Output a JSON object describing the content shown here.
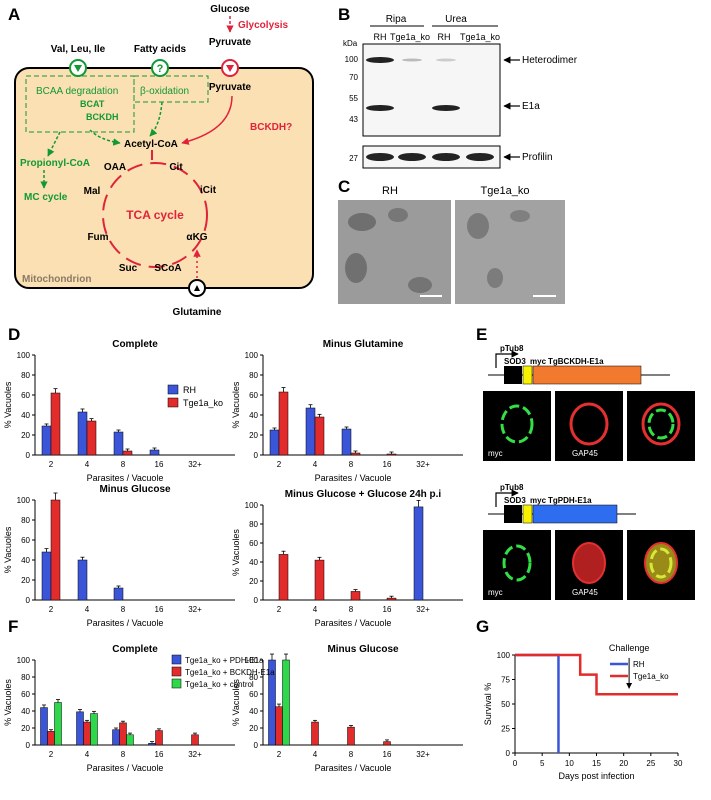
{
  "panel_letters": [
    "A",
    "B",
    "C",
    "D",
    "E",
    "F",
    "G"
  ],
  "panelA": {
    "inputs": [
      "Val, Leu, Ile",
      "Fatty acids",
      "Glucose"
    ],
    "glycolysis": "Glycolysis",
    "pyruvate": "Pyruvate",
    "bcaa_degradation": "BCAA degradation",
    "bcat": "BCAT",
    "bckdh": "BCKDH",
    "beta_ox": "β-oxidation",
    "acetyl_coa": "Acetyl-CoA",
    "bckdh_q": "BCKDH?",
    "propionyl_coa": "Propionyl-CoA",
    "mc_cycle": "MC cycle",
    "tca": "TCA cycle",
    "mets": [
      "OAA",
      "Cit",
      "iCit",
      "αKG",
      "SCoA",
      "Suc",
      "Fum",
      "Mal"
    ],
    "mito": "Mitochondrion",
    "glutamine": "Glutamine",
    "q": "?"
  },
  "panelB": {
    "groups": [
      "Ripa",
      "Urea"
    ],
    "lanes": [
      "RH",
      "Tge1a_ko",
      "RH",
      "Tge1a_ko"
    ],
    "kda": "kDa",
    "mw": [
      "100",
      "70",
      "55",
      "43",
      "27"
    ],
    "bands": [
      "Heterodimer",
      "E1a",
      "Profilin"
    ]
  },
  "panelC": {
    "labels": [
      "RH",
      "Tge1a_ko"
    ]
  },
  "colors": {
    "rh": "#3b55d9",
    "ko": "#e22b2b",
    "pdh": "#3b55d9",
    "bckdh": "#e22b2b",
    "control": "#2fd84a",
    "diagram_red": "#e0233a",
    "diagram_green": "#119933",
    "mito_fill": "#fbe0b3"
  },
  "chart_data": [
    {
      "type": "bar",
      "title": "Complete",
      "xlabel": "Parasites / Vacuole",
      "ylabel": "% Vacuoles",
      "ylim": [
        0,
        100
      ],
      "categories": [
        "2",
        "4",
        "8",
        "16",
        "32+"
      ],
      "series": [
        {
          "name": "RH",
          "values": [
            29,
            43,
            23,
            5,
            0
          ]
        },
        {
          "name": "Tge1a_ko",
          "values": [
            62,
            34,
            4,
            0,
            0
          ]
        }
      ]
    },
    {
      "type": "bar",
      "title": "Minus Glutamine",
      "xlabel": "Parasites / Vacuole",
      "ylabel": "% Vacuoles",
      "ylim": [
        0,
        100
      ],
      "categories": [
        "2",
        "4",
        "8",
        "16",
        "32+"
      ],
      "series": [
        {
          "name": "RH",
          "values": [
            25,
            47,
            26,
            0,
            0
          ]
        },
        {
          "name": "Tge1a_ko",
          "values": [
            63,
            38,
            2,
            1,
            0
          ]
        }
      ]
    },
    {
      "type": "bar",
      "title": "Minus Glucose",
      "xlabel": "Parasites / Vacuole",
      "ylabel": "% Vacuoles",
      "ylim": [
        0,
        100
      ],
      "categories": [
        "2",
        "4",
        "8",
        "16",
        "32+"
      ],
      "series": [
        {
          "name": "RH",
          "values": [
            48,
            40,
            12,
            0,
            0
          ]
        },
        {
          "name": "Tge1a_ko",
          "values": [
            100,
            0,
            0,
            0,
            0
          ]
        }
      ]
    },
    {
      "type": "bar",
      "title": "Minus Glucose + Glucose 24h p.i",
      "xlabel": "Parasites / Vacuole",
      "ylabel": "% Vacuoles",
      "ylim": [
        0,
        100
      ],
      "categories": [
        "2",
        "4",
        "8",
        "16",
        "32+"
      ],
      "series": [
        {
          "name": "RH",
          "values": [
            0,
            0,
            0,
            0,
            98
          ]
        },
        {
          "name": "Tge1a_ko",
          "values": [
            48,
            42,
            9,
            2,
            0
          ]
        }
      ]
    },
    {
      "type": "bar",
      "title": "Complete",
      "xlabel": "Parasites / Vacuole",
      "ylabel": "% Vacuoles",
      "ylim": [
        0,
        100
      ],
      "categories": [
        "2",
        "4",
        "8",
        "16",
        "32+"
      ],
      "series": [
        {
          "name": "Tge1a_ko + PDH-E1a",
          "values": [
            44,
            39,
            18,
            2,
            0
          ]
        },
        {
          "name": "Tge1a_ko + BCKDH-E1a",
          "values": [
            16,
            27,
            26,
            17,
            12
          ]
        },
        {
          "name": "Tge1a_ko + control",
          "values": [
            50,
            37,
            12,
            0,
            0
          ]
        }
      ]
    },
    {
      "type": "bar",
      "title": "Minus Glucose",
      "xlabel": "Parasites / Vacuole",
      "ylabel": "% Vacuoles",
      "ylim": [
        0,
        100
      ],
      "categories": [
        "2",
        "4",
        "8",
        "16",
        "32+"
      ],
      "series": [
        {
          "name": "Tge1a_ko + PDH-E1a",
          "values": [
            100,
            0,
            0,
            0,
            0
          ]
        },
        {
          "name": "Tge1a_ko + BCKDH-E1a",
          "values": [
            45,
            27,
            21,
            4,
            0
          ]
        },
        {
          "name": "Tge1a_ko + control",
          "values": [
            100,
            0,
            0,
            0,
            0
          ]
        }
      ]
    },
    {
      "type": "line",
      "xlabel": "Days post infection",
      "ylabel": "Survival %",
      "ylim": [
        0,
        100
      ],
      "xlim": [
        0,
        30
      ],
      "x_ticks": [
        0,
        5,
        10,
        15,
        20,
        25,
        30
      ],
      "y_ticks": [
        0,
        25,
        50,
        75,
        100
      ],
      "series": [
        {
          "name": "RH",
          "x": [
            0,
            8,
            8
          ],
          "y": [
            100,
            100,
            0
          ]
        },
        {
          "name": "Tge1a_ko",
          "x": [
            0,
            12,
            12,
            15,
            15,
            30
          ],
          "y": [
            100,
            100,
            80,
            80,
            60,
            60
          ]
        }
      ],
      "annotation": "Challenge"
    }
  ],
  "panelE": {
    "promoter": "pTub8",
    "sod3": "SOD3",
    "myc": "myc",
    "construct1": "TgBCKDH-E1a",
    "construct2": "TgPDH-E1a",
    "stain_green": "myc",
    "stain_red": "GAP45"
  }
}
